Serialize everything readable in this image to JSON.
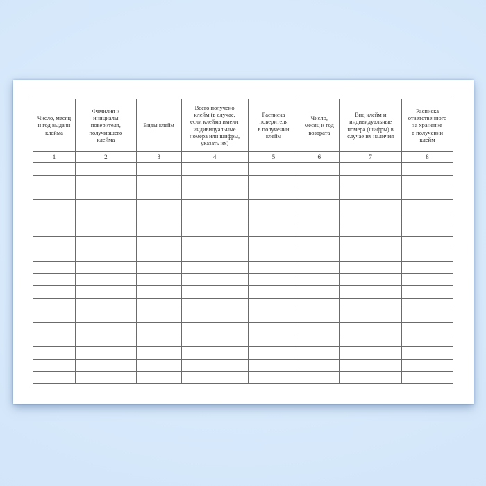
{
  "colors": {
    "background": "#d5e8fb",
    "paper": "#ffffff",
    "table_border": "#6b6b6b",
    "text": "#2e2e2e"
  },
  "document": {
    "language": "ru"
  },
  "table": {
    "columns": [
      {
        "number": "1",
        "header": "Число, месяц\nи год выдачи\nклейма",
        "width_pct": 10.07
      },
      {
        "number": "2",
        "header": "Фамилия и\nинициалы\nповерителя,\nполучившего\nклейма",
        "width_pct": 14.52
      },
      {
        "number": "3",
        "header": "Виды клейм",
        "width_pct": 10.73
      },
      {
        "number": "4",
        "header": "Всего получено\nклейм (в случае,\nесли клейма имеют\nиндивидуальные\nномера или шифры,\nуказать их)",
        "width_pct": 15.84
      },
      {
        "number": "5",
        "header": "Расписка\nповерителя\nв получении\nклейм",
        "width_pct": 12.21
      },
      {
        "number": "6",
        "header": "Число,\nмесяц и год\nвозврата",
        "width_pct": 9.57
      },
      {
        "number": "7",
        "header": "Вид клейм и\nиндивидуальные\nномера (шифры) в\nслучае их наличия",
        "width_pct": 14.85
      },
      {
        "number": "8",
        "header": "Расписка\nответственного\nза хранение\nв получении\nклейм",
        "width_pct": 12.21
      }
    ],
    "empty_rows": 18,
    "empty_cell_value": ""
  }
}
